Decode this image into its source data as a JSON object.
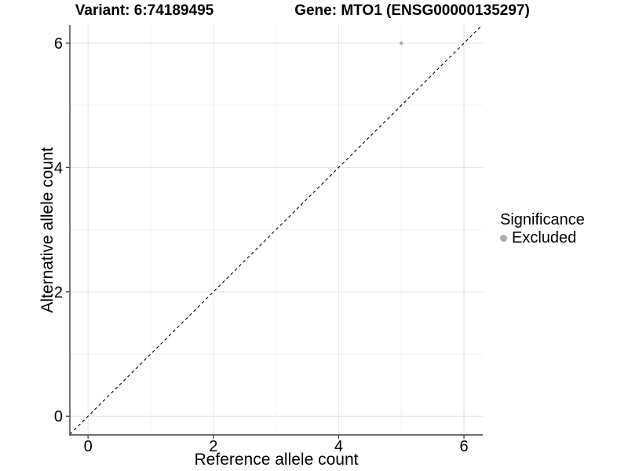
{
  "chart_data": {
    "type": "scatter",
    "title_variant": "Variant: 6:74189495",
    "title_gene": "Gene: MTO1 (ENSG00000135297)",
    "xlabel": "Reference allele count",
    "ylabel": "Alternative allele count",
    "xlim": [
      -0.29,
      6.3
    ],
    "ylim": [
      -0.3,
      6.29
    ],
    "x_ticks": [
      0,
      2,
      4,
      6
    ],
    "y_ticks": [
      0,
      2,
      4,
      6
    ],
    "x_minor_ticks": [
      1,
      3,
      5
    ],
    "y_minor_ticks": [
      1,
      3,
      5
    ],
    "grid": "major and minor gridlines, light gray on white",
    "points": [
      {
        "x": 5,
        "y": 6,
        "significance": "Excluded"
      }
    ],
    "identity_line": {
      "slope": 1,
      "intercept": 0,
      "style": "dashed"
    },
    "legend": {
      "title": "Significance",
      "position": "right",
      "items": [
        {
          "label": "Excluded",
          "color": "#adadad"
        }
      ]
    },
    "colors": {
      "point": "#b2b2b2",
      "axis_line": "#3f3f3f",
      "grid_major": "#e4e4e4",
      "grid_minor": "#f1f1f1",
      "dashed_line": "#000000",
      "text": "#000000"
    }
  }
}
